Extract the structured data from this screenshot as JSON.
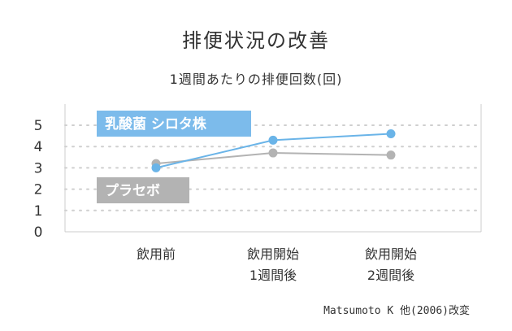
{
  "chart_data": {
    "type": "line",
    "title": "排便状況の改善",
    "subtitle": "1週間あたりの排便回数(回)",
    "categories": [
      [
        "飲用前"
      ],
      [
        "飲用開始",
        "1週間後"
      ],
      [
        "飲用開始",
        "2週間後"
      ]
    ],
    "yticks": [
      "0",
      "1",
      "2",
      "3",
      "4",
      "5"
    ],
    "ylim": [
      0,
      5.3
    ],
    "grid": true,
    "series": [
      {
        "name": "乳酸菌 シロタ株",
        "values": [
          3.0,
          4.3,
          4.6
        ],
        "color": "#6ab4e8",
        "label_bg": "#7cbbeb"
      },
      {
        "name": "プラセボ",
        "values": [
          3.2,
          3.7,
          3.6
        ],
        "color": "#b3b3b3",
        "label_bg": "#b3b3b3"
      }
    ],
    "source": "Matsumoto K 他(2006)改変"
  }
}
